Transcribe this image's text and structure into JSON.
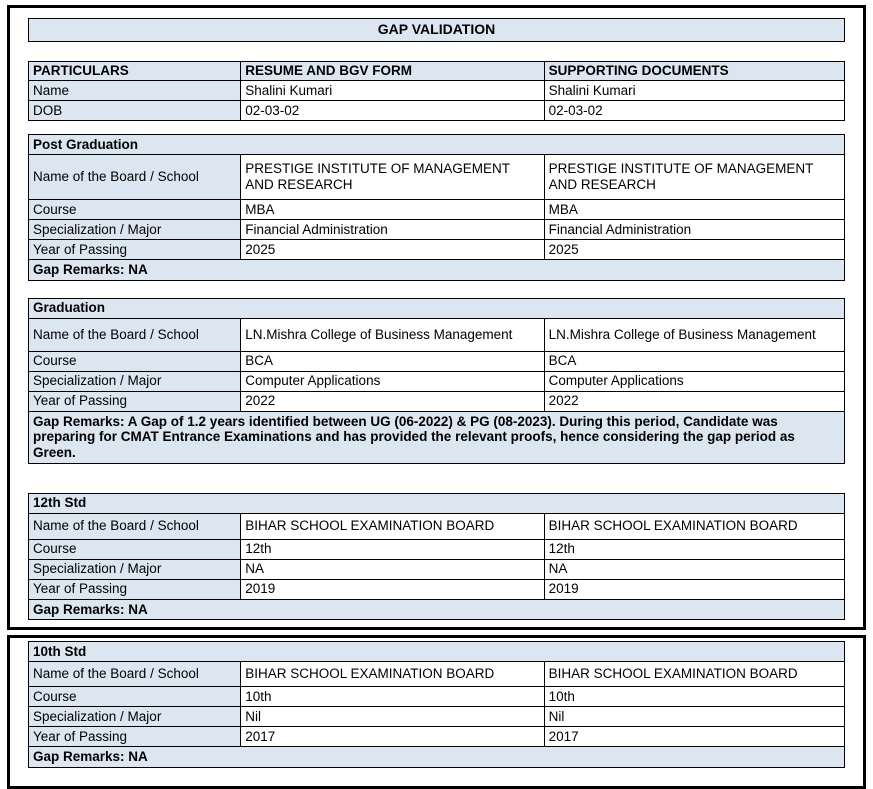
{
  "page": {
    "title": "GAP VALIDATION"
  },
  "colors": {
    "fill": "#dce6f1",
    "border": "#000000"
  },
  "particulars_table": {
    "headers": [
      "PARTICULARS",
      "RESUME AND BGV FORM",
      "SUPPORTING DOCUMENTS"
    ],
    "rows": [
      {
        "label": "Name",
        "resume": "Shalini Kumari",
        "supporting": "Shalini Kumari"
      },
      {
        "label": "DOB",
        "resume": "02-03-02",
        "supporting": "02-03-02"
      }
    ]
  },
  "sections": [
    {
      "title": "Post Graduation",
      "rows": [
        {
          "label": "Name of the Board / School",
          "resume": "PRESTIGE INSTITUTE OF MANAGEMENT AND RESEARCH",
          "supporting": "PRESTIGE INSTITUTE OF MANAGEMENT AND RESEARCH"
        },
        {
          "label": "Course",
          "resume": "MBA",
          "supporting": "MBA"
        },
        {
          "label": "Specialization / Major",
          "resume": "Financial Administration",
          "supporting": "Financial Administration"
        },
        {
          "label": "Year of Passing",
          "resume": "2025",
          "supporting": "2025"
        }
      ],
      "gap_remarks": "Gap Remarks: NA"
    },
    {
      "title": "Graduation",
      "rows": [
        {
          "label": "Name of the Board / School",
          "resume": "LN.Mishra College of Business Management",
          "supporting": "LN.Mishra College of Business Management"
        },
        {
          "label": "Course",
          "resume": "BCA",
          "supporting": "BCA"
        },
        {
          "label": "Specialization / Major",
          "resume": "Computer Applications",
          "supporting": "Computer Applications"
        },
        {
          "label": "Year of Passing",
          "resume": "2022",
          "supporting": "2022"
        }
      ],
      "gap_remarks": "Gap Remarks: A Gap of 1.2 years identified between UG (06-2022) & PG (08-2023). During this period, Candidate was preparing for CMAT Entrance Examinations and has provided the relevant proofs, hence considering the gap period as Green."
    },
    {
      "title": "12th Std",
      "rows": [
        {
          "label": "Name of the Board / School",
          "resume": "BIHAR SCHOOL EXAMINATION BOARD",
          "supporting": "BIHAR SCHOOL EXAMINATION BOARD"
        },
        {
          "label": "Course",
          "resume": "12th",
          "supporting": "12th"
        },
        {
          "label": "Specialization / Major",
          "resume": "NA",
          "supporting": "NA"
        },
        {
          "label": "Year of Passing",
          "resume": "2019",
          "supporting": "2019"
        }
      ],
      "gap_remarks": "Gap Remarks: NA"
    },
    {
      "title": "10th Std",
      "rows": [
        {
          "label": "Name of the Board / School",
          "resume": "BIHAR SCHOOL EXAMINATION BOARD",
          "supporting": "BIHAR SCHOOL EXAMINATION BOARD"
        },
        {
          "label": "Course",
          "resume": "10th",
          "supporting": "10th"
        },
        {
          "label": "Specialization / Major",
          "resume": "Nil",
          "supporting": "Nil"
        },
        {
          "label": "Year of Passing",
          "resume": "2017",
          "supporting": "2017"
        }
      ],
      "gap_remarks": "Gap Remarks: NA"
    }
  ]
}
